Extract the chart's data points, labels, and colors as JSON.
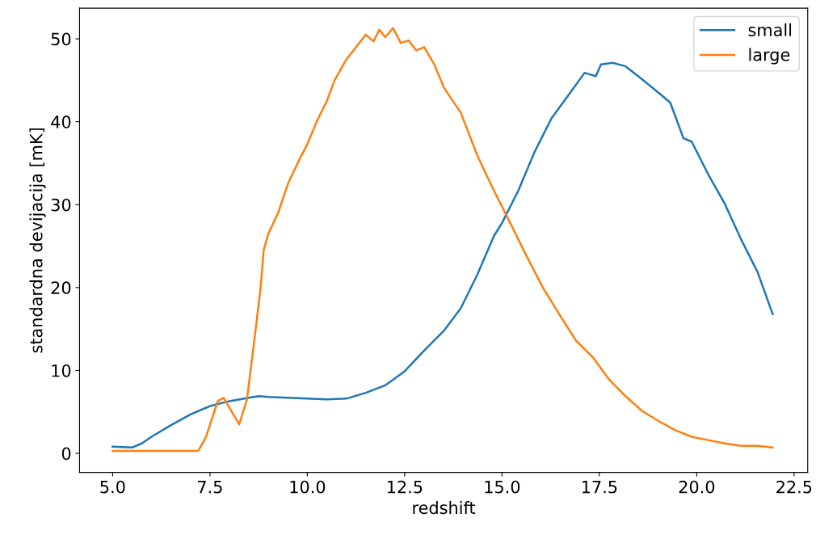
{
  "chart_data": {
    "type": "line",
    "xlabel": "redshift",
    "ylabel": "standardna devijacija [mK]",
    "xlim": [
      4.15,
      22.85
    ],
    "ylim": [
      -2.3,
      53.7
    ],
    "xticks": [
      {
        "value": 5,
        "label": "5.0"
      },
      {
        "value": 7.5,
        "label": "7.5"
      },
      {
        "value": 10,
        "label": "10.0"
      },
      {
        "value": 12.5,
        "label": "12.5"
      },
      {
        "value": 15,
        "label": "15.0"
      },
      {
        "value": 17.5,
        "label": "17.5"
      },
      {
        "value": 20,
        "label": "20.0"
      },
      {
        "value": 22.5,
        "label": "22.5"
      }
    ],
    "yticks": [
      0,
      10,
      20,
      30,
      40,
      50
    ],
    "grid": false,
    "legend": "top right",
    "series": [
      {
        "name": "small",
        "color": "#1f77b4",
        "x": [
          5.0,
          5.5,
          5.75,
          6.0,
          6.5,
          7.0,
          7.5,
          8.0,
          8.5,
          8.75,
          9.0,
          9.5,
          10.0,
          10.5,
          11.0,
          11.5,
          12.0,
          12.5,
          13.0,
          13.51,
          13.94,
          14.36,
          14.79,
          15.0,
          15.42,
          15.84,
          16.27,
          16.69,
          17.12,
          17.41,
          17.54,
          17.84,
          18.17,
          18.6,
          19.02,
          19.32,
          19.66,
          19.87,
          20.29,
          20.72,
          21.14,
          21.56,
          21.95
        ],
        "values": [
          0.8,
          0.7,
          1.2,
          2.0,
          3.4,
          4.7,
          5.7,
          6.3,
          6.7,
          6.9,
          6.8,
          6.7,
          6.6,
          6.5,
          6.6,
          7.3,
          8.2,
          9.9,
          12.4,
          14.8,
          17.5,
          21.5,
          26.2,
          27.8,
          31.7,
          36.4,
          40.4,
          43.1,
          45.9,
          45.5,
          46.9,
          47.1,
          46.7,
          45.1,
          43.5,
          42.3,
          38.0,
          37.6,
          33.7,
          30.1,
          25.8,
          21.9,
          16.8
        ]
      },
      {
        "name": "large",
        "color": "#ff7f0e",
        "x": [
          5.0,
          7.2,
          7.4,
          7.7,
          7.85,
          8.0,
          8.25,
          8.45,
          8.7,
          8.8,
          8.88,
          9.0,
          9.25,
          9.5,
          9.75,
          10.0,
          10.25,
          10.5,
          10.7,
          11.0,
          11.3,
          11.5,
          11.7,
          11.85,
          12.0,
          12.2,
          12.4,
          12.6,
          12.8,
          13.0,
          13.25,
          13.51,
          13.94,
          14.36,
          14.79,
          15.21,
          15.63,
          16.06,
          16.48,
          16.9,
          17.33,
          17.75,
          18.17,
          18.6,
          19.02,
          19.45,
          19.87,
          20.29,
          20.72,
          21.14,
          21.56,
          21.95
        ],
        "values": [
          0.3,
          0.3,
          2.0,
          6.3,
          6.7,
          5.5,
          3.5,
          6.5,
          16.0,
          20.0,
          24.5,
          26.5,
          29.0,
          32.5,
          35.0,
          37.3,
          40.1,
          42.5,
          45.0,
          47.5,
          49.3,
          50.5,
          49.7,
          51.1,
          50.2,
          51.3,
          49.5,
          49.8,
          48.6,
          49.0,
          47.0,
          44.1,
          41.1,
          36.0,
          31.7,
          27.8,
          23.8,
          19.9,
          16.7,
          13.6,
          11.6,
          8.9,
          6.9,
          5.1,
          3.9,
          2.8,
          2.0,
          1.6,
          1.2,
          0.9,
          0.9,
          0.7
        ]
      }
    ]
  }
}
